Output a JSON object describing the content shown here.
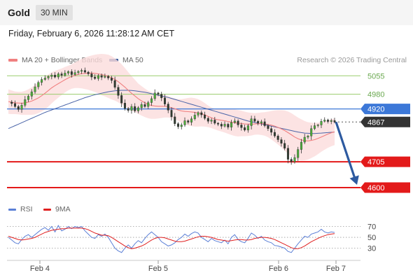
{
  "header": {
    "symbol": "Gold",
    "timeframe": "30 MIN",
    "datetime": "Friday, February 6, 2026 11:28:12 AM CET"
  },
  "legend": {
    "ma20_label": "MA 20 + Bollinger Bands",
    "ma50_label": "MA 50",
    "source": "Research © 2026 Trading Central",
    "ma20_color": "#f08080",
    "ma50_color": "#3a5a9a"
  },
  "rsi_legend": {
    "rsi_label": "RSI",
    "ma_label": "9MA",
    "rsi_color": "#5b7fd6",
    "ma_color": "#e02020"
  },
  "chart_data": [
    {
      "type": "line",
      "title": "",
      "x_labels": [
        "Feb 4",
        "Feb 5",
        "Feb 6",
        "Feb 7"
      ],
      "ylim": [
        4560,
        5090
      ],
      "levels": [
        {
          "value": 5055,
          "label": "5055",
          "kind": "resistance-light",
          "color": "#9acd6e"
        },
        {
          "value": 4980,
          "label": "4980",
          "kind": "resistance-light",
          "color": "#9acd6e"
        },
        {
          "value": 4920,
          "label": "4920",
          "kind": "pivot",
          "color": "#3c78d8"
        },
        {
          "value": 4867,
          "label": "4867",
          "kind": "last-price",
          "color": "#333333"
        },
        {
          "value": 4705,
          "label": "4705",
          "kind": "support",
          "color": "#e31a1a"
        },
        {
          "value": 4600,
          "label": "4600",
          "kind": "support",
          "color": "#e31a1a"
        }
      ],
      "series": [
        {
          "kind": "close",
          "values": [
            4948,
            4942,
            4930,
            4918,
            4935,
            4958,
            4972,
            4990,
            5010,
            5028,
            5040,
            5046,
            5052,
            5058,
            5050,
            5063,
            5057,
            5066,
            5072,
            5060,
            5068,
            5073,
            5077,
            5070,
            5063,
            5050,
            5044,
            5056,
            5049,
            5053,
            5046,
            5036,
            5008,
            4975,
            4944,
            4922,
            4914,
            4930,
            4912,
            4925,
            4938,
            4930,
            4946,
            4962,
            4985,
            4980,
            4965,
            4940,
            4915,
            4888,
            4860,
            4848,
            4855,
            4872,
            4866,
            4880,
            4895,
            4905,
            4896,
            4882,
            4870,
            4875,
            4862,
            4858,
            4850,
            4858,
            4846,
            4865,
            4871,
            4855,
            4844,
            4834,
            4852,
            4880,
            4870,
            4862,
            4868,
            4852,
            4840,
            4825,
            4810,
            4795,
            4780,
            4760,
            4715,
            4705,
            4722,
            4755,
            4785,
            4805,
            4810,
            4840,
            4852,
            4855,
            4870,
            4875,
            4869,
            4873,
            4867
          ]
        },
        {
          "kind": "ma20",
          "values": [
            4950,
            4947,
            4945,
            4944,
            4943,
            4945,
            4948,
            4952,
            4958,
            4965,
            4974,
            4984,
            4995,
            5006,
            5015,
            5023,
            5031,
            5039,
            5046,
            5052,
            5057,
            5061,
            5064,
            5065,
            5066,
            5066,
            5065,
            5063,
            5060,
            5057,
            5053,
            5047,
            5040,
            5031,
            5020,
            5009,
            4996,
            4984,
            4973,
            4962,
            4953,
            4945,
            4938,
            4934,
            4932,
            4931,
            4931,
            4931,
            4929,
            4925,
            4921,
            4916,
            4912,
            4910,
            4909,
            4908,
            4906,
            4904,
            4901,
            4896,
            4890,
            4884,
            4879,
            4876,
            4874,
            4872,
            4869,
            4866,
            4864,
            4862,
            4861,
            4859,
            4858,
            4858,
            4859,
            4860,
            4860,
            4859,
            4857,
            4854,
            4850,
            4845,
            4839,
            4832,
            4824,
            4815,
            4806,
            4799,
            4794,
            4791,
            4790,
            4792,
            4795,
            4800,
            4806,
            4812,
            4818,
            4823,
            4827
          ]
        },
        {
          "kind": "ma50",
          "values": [
            4840,
            4846,
            4852,
            4858,
            4864,
            4870,
            4876,
            4882,
            4888,
            4894,
            4900,
            4906,
            4911,
            4916,
            4921,
            4926,
            4931,
            4936,
            4941,
            4946,
            4951,
            4956,
            4961,
            4966,
            4970,
            4974,
            4978,
            4981,
            4984,
            4987,
            4990,
            4992,
            4994,
            4995,
            4996,
            4996,
            4996,
            4995,
            4994,
            4992,
            4990,
            4988,
            4985,
            4982,
            4979,
            4976,
            4973,
            4970,
            4967,
            4963,
            4959,
            4955,
            4951,
            4947,
            4943,
            4939,
            4935,
            4931,
            4927,
            4923,
            4919,
            4915,
            4911,
            4907,
            4903,
            4899,
            4895,
            4891,
            4887,
            4883,
            4879,
            4875,
            4871,
            4868,
            4865,
            4862,
            4859,
            4856,
            4853,
            4850,
            4847,
            4844,
            4841,
            4838,
            4835,
            4832,
            4829,
            4826,
            4824,
            4822,
            4821,
            4820,
            4820,
            4821,
            4822,
            4823,
            4824,
            4825,
            4826
          ]
        },
        {
          "kind": "bollinger-band-width",
          "values": [
            50,
            48,
            46,
            46,
            47,
            49,
            52,
            56,
            60,
            62,
            64,
            66,
            65,
            63,
            60,
            57,
            54,
            52,
            50,
            50,
            52,
            56,
            60,
            64,
            68,
            72,
            76,
            80,
            84,
            86,
            88,
            88,
            86,
            84,
            82,
            78,
            74,
            70,
            66,
            62,
            60,
            58,
            56,
            54,
            52,
            50,
            48,
            46,
            44,
            42,
            42,
            44,
            48,
            52,
            56,
            58,
            58,
            56,
            52,
            48,
            44,
            42,
            42,
            44,
            46,
            48,
            50,
            52,
            54,
            54,
            52,
            50,
            48,
            46,
            44,
            44,
            46,
            48,
            52,
            58,
            64,
            70,
            76,
            82,
            86,
            88,
            88,
            86,
            84,
            80,
            76,
            72,
            68,
            64,
            60,
            58,
            56,
            55,
            54
          ]
        }
      ]
    },
    {
      "type": "line",
      "title": "RSI",
      "ylim": [
        10,
        85
      ],
      "levels": [
        {
          "value": 70,
          "label": "70"
        },
        {
          "value": 50,
          "label": "50"
        },
        {
          "value": 30,
          "label": "30"
        }
      ],
      "series": [
        {
          "name": "RSI",
          "values": [
            50,
            45,
            40,
            38,
            46,
            52,
            55,
            50,
            55,
            60,
            65,
            68,
            63,
            70,
            60,
            72,
            62,
            65,
            70,
            66,
            70,
            68,
            70,
            62,
            56,
            50,
            48,
            55,
            52,
            56,
            50,
            40,
            30,
            25,
            22,
            30,
            36,
            30,
            38,
            44,
            40,
            48,
            55,
            60,
            55,
            50,
            42,
            38,
            34,
            36,
            40,
            46,
            50,
            56,
            52,
            57,
            60,
            58,
            50,
            46,
            42,
            48,
            44,
            42,
            40,
            45,
            38,
            50,
            55,
            46,
            42,
            40,
            48,
            58,
            54,
            48,
            52,
            45,
            42,
            40,
            35,
            34,
            32,
            30,
            24,
            22,
            30,
            38,
            45,
            52,
            50,
            56,
            58,
            60,
            65,
            60,
            58,
            60,
            59
          ]
        },
        {
          "name": "9MA",
          "values": [
            52,
            50,
            48,
            46,
            45,
            46,
            47,
            48,
            50,
            53,
            56,
            59,
            61,
            63,
            64,
            65,
            66,
            66,
            67,
            67,
            67,
            67,
            67,
            66,
            64,
            61,
            58,
            56,
            54,
            54,
            53,
            50,
            46,
            42,
            38,
            34,
            31,
            29,
            30,
            32,
            34,
            37,
            41,
            45,
            48,
            50,
            50,
            49,
            47,
            45,
            43,
            42,
            42,
            43,
            45,
            47,
            49,
            51,
            52,
            52,
            51,
            50,
            48,
            46,
            45,
            44,
            43,
            44,
            45,
            46,
            46,
            45,
            45,
            46,
            48,
            49,
            50,
            50,
            49,
            48,
            46,
            43,
            40,
            37,
            34,
            31,
            29,
            29,
            31,
            34,
            38,
            42,
            45,
            48,
            51,
            53,
            55,
            56,
            57
          ]
        }
      ]
    }
  ]
}
